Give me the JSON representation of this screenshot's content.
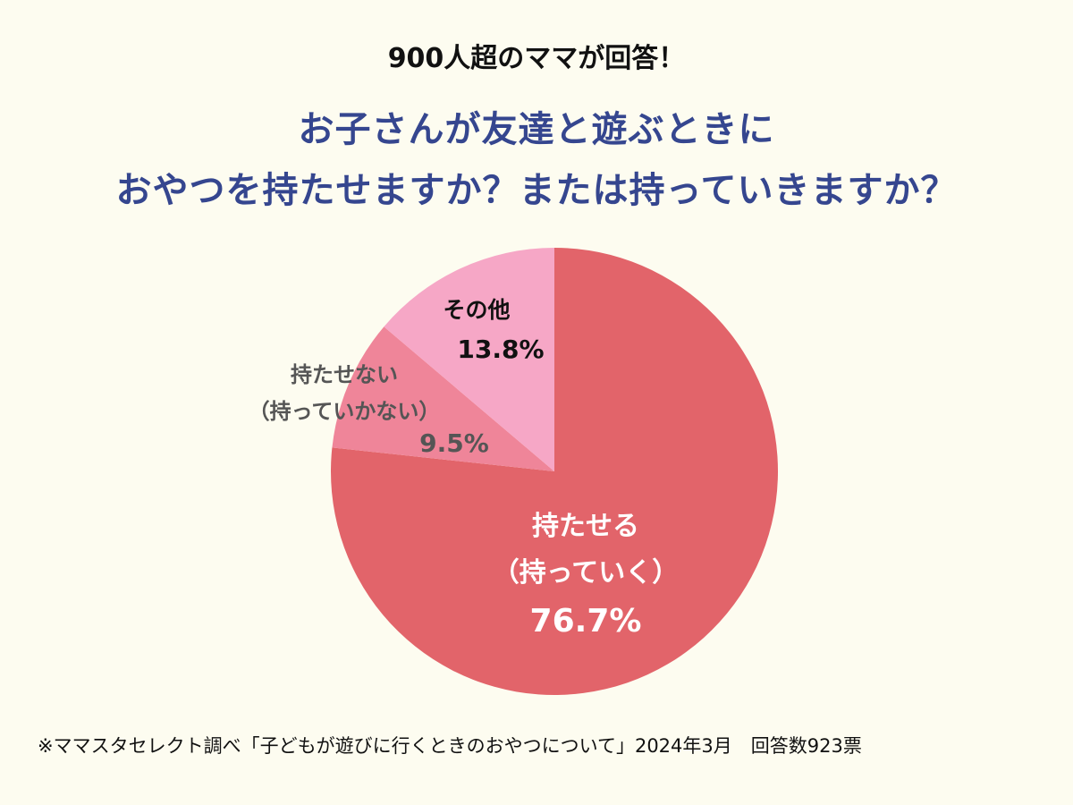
{
  "header": {
    "subtitle": "900人超のママが回答！",
    "title_line1": "お子さんが友達と遊ぶときに",
    "title_line2": "おやつを持たせますか？または持っていきますか？"
  },
  "chart_data": {
    "type": "pie",
    "title": "お子さんが友達と遊ぶときにおやつを持たせますか？または持っていきますか？",
    "start": "12 o'clock, clockwise",
    "slices": [
      {
        "label_lines": [
          "持たせる",
          "（持っていく）"
        ],
        "value": 76.7,
        "value_label": "76.7%",
        "color": "#e2646a",
        "text_color": "#ffffff"
      },
      {
        "label_lines": [
          "持たせない",
          "（持っていかない）"
        ],
        "value": 9.5,
        "value_label": "9.5%",
        "color": "#ef8599",
        "text_color": "#555555"
      },
      {
        "label_lines": [
          "その他"
        ],
        "value": 13.8,
        "value_label": "13.8%",
        "color": "#f6a7c6",
        "text_color": "#111111"
      }
    ]
  },
  "footer": {
    "note": "※ママスタセレクト調べ「子どもが遊びに行くときのおやつについて」2024年3月　回答数923票"
  }
}
